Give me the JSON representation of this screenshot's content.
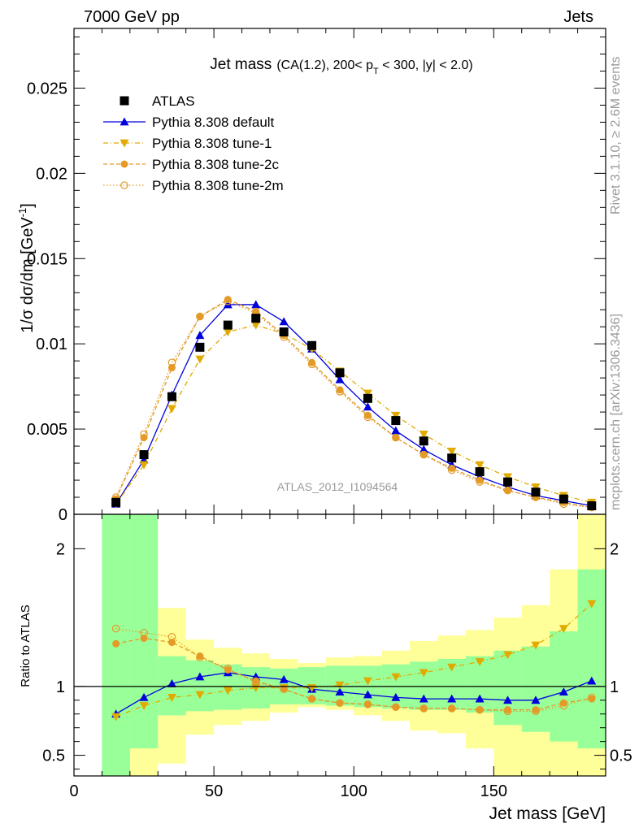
{
  "header": {
    "left": "7000 GeV pp",
    "right": "Jets"
  },
  "side_text": {
    "rivet": "Rivet 3.1.10, ≥ 2.6M events",
    "mcplots": "mcplots.cern.ch [arXiv:1306.3436]"
  },
  "analysis_label": "ATLAS_2012_I1094564",
  "chart_data": {
    "type": "line",
    "title": "Jet mass",
    "title_selection": "(CA(1.2), 200< p_T < 300, |y| < 2.0)",
    "xlabel": "Jet mass [GeV]",
    "ylabel": "1/σ dσ/dm [GeV^-1]",
    "ratio_ylabel": "Ratio to ATLAS",
    "xlim": [
      0,
      190
    ],
    "ylim": [
      0,
      0.0285
    ],
    "ratio_ylim": [
      0.35,
      2.25
    ],
    "x_ticks": [
      0,
      50,
      100,
      150
    ],
    "y_ticks": [
      0,
      0.005,
      0.01,
      0.015,
      0.02,
      0.025
    ],
    "y_tick_labels": [
      "0",
      "0.005",
      "0.01",
      "0.015",
      "0.02",
      "0.025"
    ],
    "ratio_ticks": [
      0.5,
      1,
      2
    ],
    "ratio_tick_labels": [
      "0.5",
      "1",
      "2"
    ],
    "x": [
      15,
      25,
      35,
      45,
      55,
      65,
      75,
      85,
      95,
      105,
      115,
      125,
      135,
      145,
      155,
      165,
      175,
      185
    ],
    "bin_edges": [
      10,
      20,
      30,
      40,
      50,
      60,
      70,
      80,
      90,
      100,
      110,
      120,
      130,
      140,
      150,
      160,
      170,
      180,
      190
    ],
    "data": {
      "name": "ATLAS",
      "values": [
        0.0007,
        0.0035,
        0.0069,
        0.0098,
        0.0111,
        0.0115,
        0.0107,
        0.0099,
        0.0083,
        0.0068,
        0.0055,
        0.0043,
        0.0033,
        0.0025,
        0.0019,
        0.0013,
        0.0009,
        0.0005
      ],
      "color": "#000000"
    },
    "series": [
      {
        "name": "Pythia 8.308 default",
        "color": "#0000dd",
        "marker": "triangle-up",
        "line": "solid",
        "values": [
          0.0006,
          0.0032,
          0.007,
          0.0105,
          0.0123,
          0.0123,
          0.0113,
          0.0097,
          0.0079,
          0.0063,
          0.0049,
          0.0038,
          0.0029,
          0.0022,
          0.0016,
          0.0011,
          0.0008,
          0.0005
        ],
        "ratio": [
          0.8,
          0.92,
          1.02,
          1.07,
          1.1,
          1.07,
          1.05,
          0.98,
          0.96,
          0.94,
          0.92,
          0.91,
          0.91,
          0.91,
          0.9,
          0.9,
          0.96,
          1.04
        ]
      },
      {
        "name": "Pythia 8.308 tune-1",
        "color": "#e0aa00",
        "marker": "triangle-down",
        "line": "dashdot",
        "values": [
          0.0006,
          0.0029,
          0.0062,
          0.0091,
          0.0107,
          0.0111,
          0.0106,
          0.0097,
          0.0084,
          0.0071,
          0.0058,
          0.0047,
          0.0037,
          0.0029,
          0.0022,
          0.0016,
          0.0011,
          0.0007
        ],
        "ratio": [
          0.78,
          0.86,
          0.92,
          0.94,
          0.97,
          0.99,
          0.99,
          0.99,
          1.01,
          1.04,
          1.07,
          1.1,
          1.14,
          1.18,
          1.23,
          1.3,
          1.42,
          1.6
        ]
      },
      {
        "name": "Pythia 8.308 tune-2c",
        "color": "#e39a27",
        "marker": "circle-filled",
        "line": "dashed",
        "values": [
          0.0009,
          0.0045,
          0.0086,
          0.0116,
          0.0126,
          0.0119,
          0.0105,
          0.0089,
          0.0073,
          0.0058,
          0.0045,
          0.0035,
          0.0027,
          0.002,
          0.0014,
          0.001,
          0.0007,
          0.0004
        ],
        "ratio": [
          1.31,
          1.35,
          1.32,
          1.22,
          1.12,
          1.04,
          0.98,
          0.91,
          0.88,
          0.87,
          0.85,
          0.84,
          0.84,
          0.83,
          0.83,
          0.83,
          0.88,
          0.91
        ]
      },
      {
        "name": "Pythia 8.308 tune-2m",
        "color": "#e39a27",
        "marker": "circle-open",
        "line": "dotted",
        "values": [
          0.001,
          0.0047,
          0.0089,
          0.0116,
          0.0125,
          0.0118,
          0.0104,
          0.0088,
          0.0072,
          0.0057,
          0.0045,
          0.0035,
          0.0026,
          0.0019,
          0.0014,
          0.001,
          0.0006,
          0.0004
        ],
        "ratio": [
          1.42,
          1.39,
          1.36,
          1.21,
          1.13,
          1.03,
          0.98,
          0.91,
          0.88,
          0.87,
          0.85,
          0.84,
          0.84,
          0.83,
          0.82,
          0.82,
          0.86,
          0.92
        ]
      }
    ],
    "ratio_bands": {
      "green": {
        "color": "#99ff99",
        "lo": [
          0.35,
          0.55,
          0.79,
          0.82,
          0.83,
          0.84,
          0.87,
          0.87,
          0.86,
          0.85,
          0.84,
          0.83,
          0.83,
          0.81,
          0.72,
          0.67,
          0.6,
          0.55
        ],
        "hi": [
          2.25,
          2.25,
          1.22,
          1.19,
          1.16,
          1.14,
          1.13,
          1.14,
          1.15,
          1.15,
          1.16,
          1.18,
          1.2,
          1.22,
          1.26,
          1.29,
          1.4,
          1.85
        ]
      },
      "yellow": {
        "color": "#ffff99",
        "lo": [
          0.35,
          0.35,
          0.44,
          0.65,
          0.72,
          0.75,
          0.81,
          0.85,
          0.83,
          0.79,
          0.75,
          0.68,
          0.66,
          0.55,
          0.35,
          0.35,
          0.35,
          0.35
        ],
        "hi": [
          2.25,
          2.01,
          1.57,
          1.34,
          1.28,
          1.24,
          1.2,
          1.17,
          1.21,
          1.22,
          1.26,
          1.33,
          1.37,
          1.41,
          1.5,
          1.59,
          1.85,
          2.25
        ]
      }
    },
    "legend_position": "top-left",
    "grid": false
  }
}
